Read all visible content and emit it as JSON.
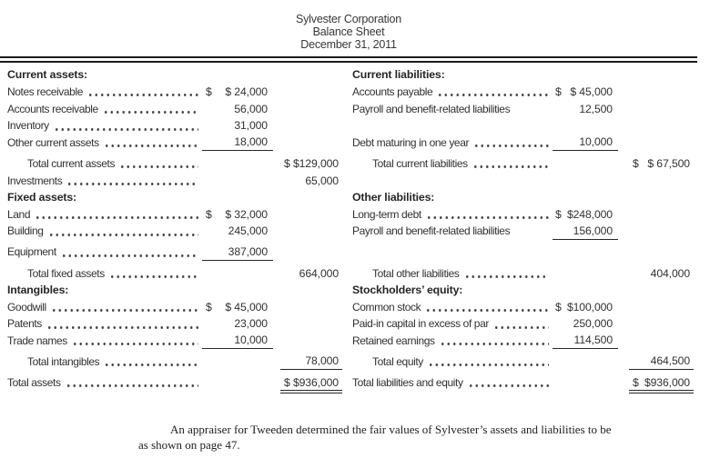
{
  "header": {
    "company": "Sylvester Corporation",
    "statement": "Balance Sheet",
    "date": "December 31, 2011"
  },
  "colors": {
    "text": "#343130",
    "rule": "#1b1b1b"
  },
  "rows": [
    {
      "left": {
        "label": "Current assets:",
        "bold": true
      },
      "right": {
        "label": "Current liabilities:",
        "bold": true
      }
    },
    {
      "left": {
        "label": "Notes receivable",
        "dots": true,
        "amount1": "$ 24,000"
      },
      "right": {
        "label": "Accounts payable",
        "dots": true,
        "amount1": "$ 45,000"
      }
    },
    {
      "left": {
        "label": "Accounts receivable",
        "dots": true,
        "amount1": "56,000"
      },
      "right": {
        "label": "Payroll and benefit-related liabilities",
        "amount1": "12,500"
      }
    },
    {
      "left": {
        "label": "Inventory",
        "dots": true,
        "amount1": "31,000"
      },
      "right": {}
    },
    {
      "left": {
        "label": "Other current assets",
        "dots": true,
        "amount1": "18,000",
        "underline1": true
      },
      "right": {
        "label": "Debt maturing in one year",
        "dots": true,
        "amount1": "10,000",
        "underline1": true
      }
    },
    {
      "left": {
        "label": "Total current assets",
        "indent": true,
        "dots": true,
        "amount2": "$129,000"
      },
      "right": {
        "label": "Total current liabilities",
        "indent": true,
        "dots": true,
        "amount2": "$ 67,500"
      }
    },
    {
      "left": {
        "label": "Investments",
        "dots": true,
        "amount2": "65,000"
      },
      "right": {}
    },
    {
      "left": {
        "label": "Fixed assets:",
        "bold": true
      },
      "right": {
        "label": "Other liabilities:",
        "bold": true
      }
    },
    {
      "left": {
        "label": "Land",
        "dots": true,
        "amount1": "$ 32,000"
      },
      "right": {
        "label": "Long-term debt",
        "dots": true,
        "amount1": "$248,000"
      }
    },
    {
      "left": {
        "label": "Building",
        "dots": true,
        "amount1": "245,000"
      },
      "right": {
        "label": "Payroll and benefit-related liabilities",
        "amount1": "156,000",
        "underline1": true
      }
    },
    {
      "left": {
        "label": "Equipment",
        "dots": true,
        "amount1": "387,000",
        "underline1": true
      },
      "right": {}
    },
    {
      "left": {
        "label": "Total fixed assets",
        "indent": true,
        "dots": true,
        "amount2": "664,000"
      },
      "right": {
        "label": "Total other liabilities",
        "indent": true,
        "dots": true,
        "amount2": "404,000"
      }
    },
    {
      "left": {
        "label": "Intangibles:",
        "bold": true
      },
      "right": {
        "label": "Stockholders’ equity:",
        "bold": true
      }
    },
    {
      "left": {
        "label": "Goodwill",
        "dots": true,
        "amount1": "$ 45,000"
      },
      "right": {
        "label": "Common stock",
        "dots": true,
        "amount1": "$100,000"
      }
    },
    {
      "left": {
        "label": "Patents",
        "dots": true,
        "amount1": "23,000"
      },
      "right": {
        "label": "Paid-in capital in excess of par",
        "dots": true,
        "amount1": "250,000"
      }
    },
    {
      "left": {
        "label": "Trade names",
        "dots": true,
        "amount1": "10,000",
        "underline1": true
      },
      "right": {
        "label": "Retained earnings",
        "dots": true,
        "amount1": "114,500",
        "underline1": true
      }
    },
    {
      "left": {
        "label": "Total intangibles",
        "indent": true,
        "dots": true,
        "amount2": "78,000",
        "underline2": true
      },
      "right": {
        "label": "Total equity",
        "indent": true,
        "dots": true,
        "amount2": "464,500",
        "underline2": true
      }
    },
    {
      "left": {
        "label": "Total assets",
        "dots": true,
        "amount2": "$936,000",
        "double_underline2": true
      },
      "right": {
        "label": "Total liabilities and equity",
        "dots": true,
        "amount2": "$936,000",
        "double_underline2": true
      }
    }
  ],
  "note": {
    "lines": [
      "An appraiser for Tweeden determined the fair values of Sylvester’s assets and liabilities to be",
      "as shown on page 47."
    ]
  }
}
